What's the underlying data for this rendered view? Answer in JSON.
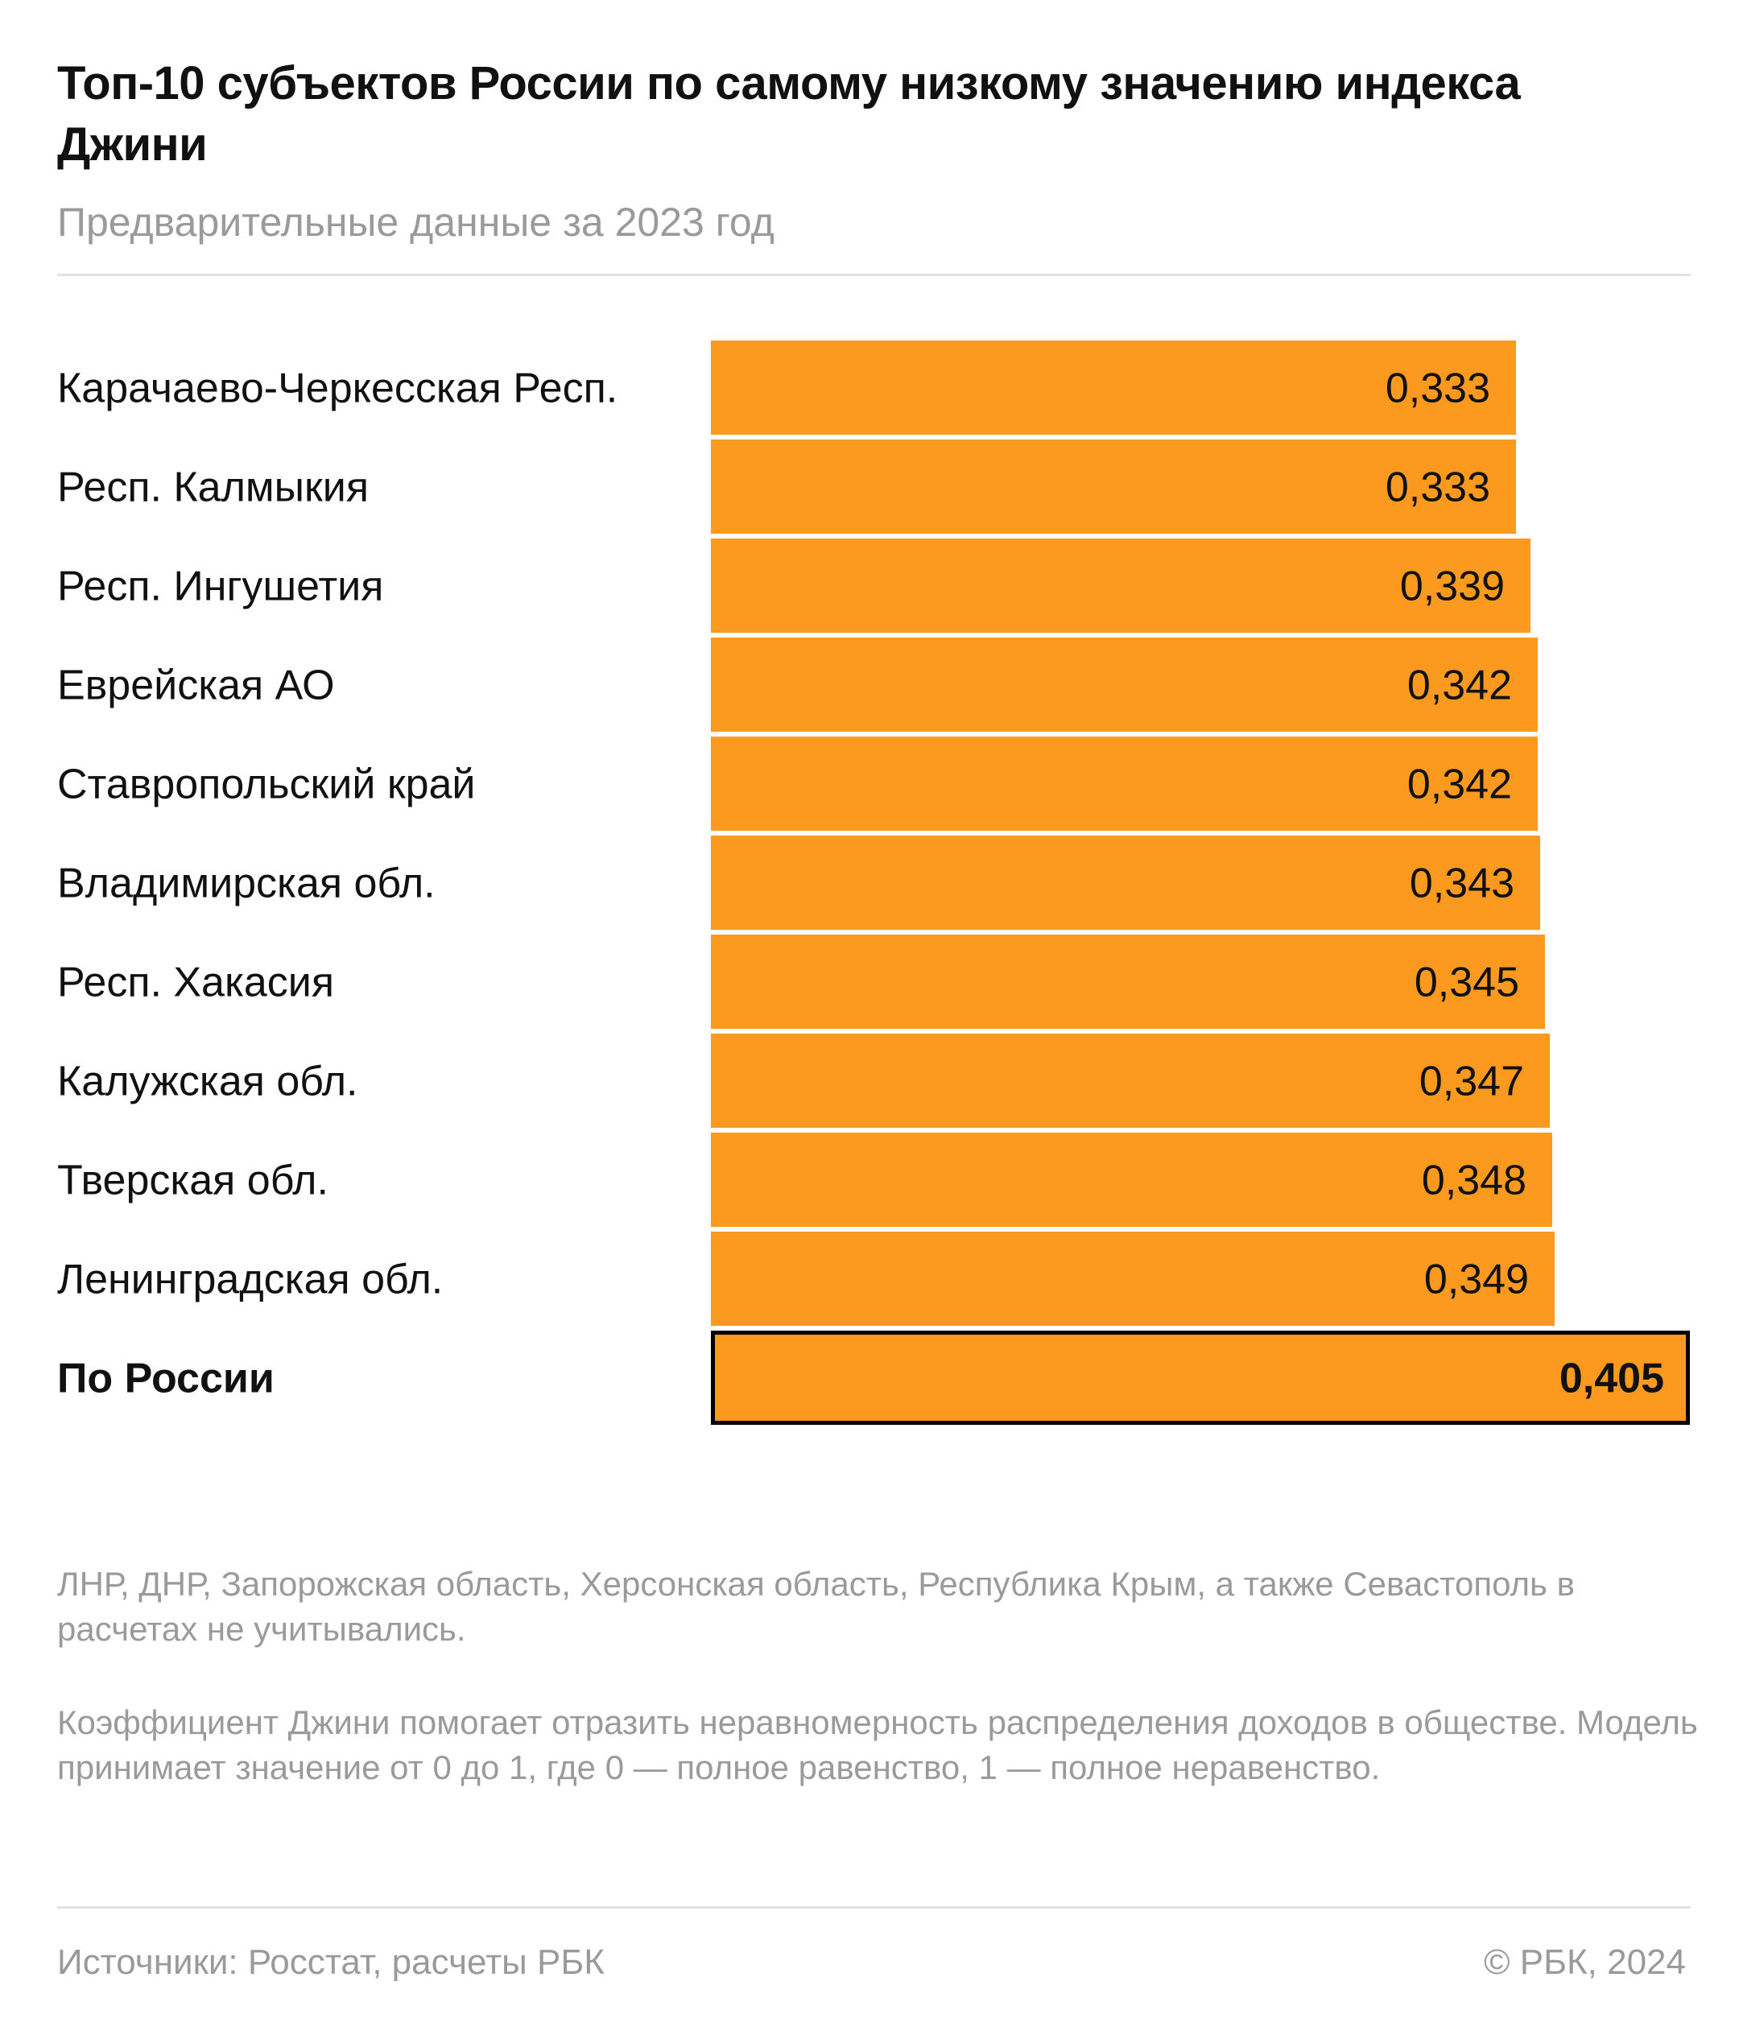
{
  "chart_data": {
    "type": "bar",
    "orientation": "horizontal",
    "title": "Топ-10 субъектов России по самому низкому значению индекса Джини",
    "subtitle": "Предварительные данные за 2023 год",
    "categories": [
      "Карачаево-Черкесская Респ.",
      "Респ. Калмыкия",
      "Респ. Ингушетия",
      "Еврейская АО",
      "Ставропольский край",
      "Владимирская обл.",
      "Респ. Хакасия",
      "Калужская обл.",
      "Тверская обл.",
      "Ленинградская обл.",
      "По России"
    ],
    "values": [
      0.333,
      0.333,
      0.339,
      0.342,
      0.342,
      0.343,
      0.345,
      0.347,
      0.348,
      0.349,
      0.405
    ],
    "value_labels": [
      "0,333",
      "0,333",
      "0,339",
      "0,342",
      "0,342",
      "0,343",
      "0,345",
      "0,347",
      "0,348",
      "0,349",
      "0,405"
    ],
    "highlight_category": "По России",
    "bar_color": "#FB9A1E",
    "highlight_border_color": "#000000",
    "xlim": [
      0,
      0.405
    ],
    "xlabel": "",
    "ylabel": "",
    "grid": false,
    "legend": false
  },
  "notes": {
    "excluded": "ЛНР, ДНР, Запорожская область, Херсонская область, Республика Крым, а также Севастополь в расчетах не учитывались.",
    "definition": "Коэффициент Джини помогает отразить неравномерность распределения доходов в обществе. Модель принимает значение от 0 до 1, где 0 — полное равенство, 1 — полное неравенство."
  },
  "footer": {
    "sources": "Источники: Росстат, расчеты РБК",
    "copyright": "© РБК, 2024"
  }
}
